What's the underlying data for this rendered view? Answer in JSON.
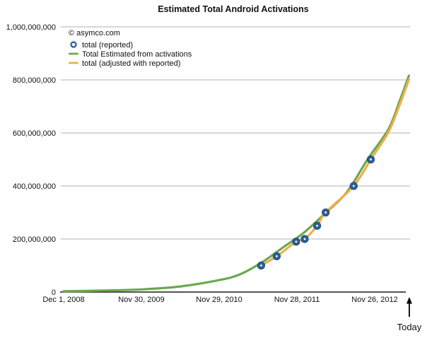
{
  "header": {
    "title": "Estimated Total Android Activations"
  },
  "watermark": "© asymco.com",
  "legend": {
    "items": [
      {
        "label": "total (reported)",
        "marker": "ring",
        "color": "#33659f"
      },
      {
        "label": "Total Estimated from activations",
        "marker": "line",
        "color": "#6aa850"
      },
      {
        "label": "total (adjusted with reported)",
        "marker": "line",
        "color": "#f0ad4d"
      }
    ]
  },
  "annotation": {
    "label": "Today",
    "t": 4.445
  },
  "colors": {
    "green_line": "#6aa850",
    "orange_line": "#f0ad4d",
    "point_fill": "#2e5f96",
    "point_rim": "#1d4a7a",
    "gridline": "#b2b2b2",
    "axis": "#1a1a1a",
    "background": "#ffffff"
  },
  "chart_data": {
    "type": "line",
    "title": "Estimated Total Android Activations",
    "x_axis": {
      "unit": "date (years since Dec 1, 2008)",
      "ticks": [
        {
          "label": "Dec 1, 2008",
          "t": 0
        },
        {
          "label": "Nov 30, 2009",
          "t": 1
        },
        {
          "label": "Nov 29, 2010",
          "t": 2
        },
        {
          "label": "Nov 28, 2011",
          "t": 3
        },
        {
          "label": "Nov 26, 2012",
          "t": 4
        }
      ]
    },
    "y_axis": {
      "range": [
        0,
        1000000000
      ],
      "grid": "horizontal",
      "ticks": [
        {
          "label": "0",
          "value": 0
        },
        {
          "label": "200,000,000",
          "value": 200000000
        },
        {
          "label": "400,000,000",
          "value": 400000000
        },
        {
          "label": "600,000,000",
          "value": 600000000
        },
        {
          "label": "800,000,000",
          "value": 800000000
        },
        {
          "label": "1,000,000,000",
          "value": 1000000000
        }
      ]
    },
    "legend_position": "top-left-inside",
    "series": [
      {
        "name": "total (reported)",
        "type": "scatter",
        "color": "#2e5f96",
        "points": [
          {
            "t": 2.54,
            "value": 100000000
          },
          {
            "t": 2.74,
            "value": 135000000
          },
          {
            "t": 2.99,
            "value": 190000000
          },
          {
            "t": 3.1,
            "value": 200000000
          },
          {
            "t": 3.26,
            "value": 250000000
          },
          {
            "t": 3.37,
            "value": 300000000
          },
          {
            "t": 3.73,
            "value": 400000000
          },
          {
            "t": 3.95,
            "value": 500000000
          }
        ]
      },
      {
        "name": "Total Estimated from activations",
        "type": "line",
        "color": "#6aa850",
        "points": [
          {
            "t": 0.0,
            "value": 3000000
          },
          {
            "t": 0.5,
            "value": 5500000
          },
          {
            "t": 1.0,
            "value": 10000000
          },
          {
            "t": 1.5,
            "value": 21000000
          },
          {
            "t": 2.0,
            "value": 45000000
          },
          {
            "t": 2.27,
            "value": 67000000
          },
          {
            "t": 2.55,
            "value": 112000000
          },
          {
            "t": 2.82,
            "value": 168000000
          },
          {
            "t": 3.09,
            "value": 224000000
          },
          {
            "t": 3.36,
            "value": 296000000
          },
          {
            "t": 3.64,
            "value": 376000000
          },
          {
            "t": 3.91,
            "value": 501000000
          },
          {
            "t": 4.18,
            "value": 616000000
          },
          {
            "t": 4.32,
            "value": 720000000
          },
          {
            "t": 4.44,
            "value": 816000000
          }
        ]
      },
      {
        "name": "total (adjusted with reported)",
        "type": "line",
        "color": "#f0ad4d",
        "points": [
          {
            "t": 2.54,
            "value": 100000000
          },
          {
            "t": 2.74,
            "value": 135000000
          },
          {
            "t": 2.99,
            "value": 190000000
          },
          {
            "t": 3.1,
            "value": 200000000
          },
          {
            "t": 3.26,
            "value": 250000000
          },
          {
            "t": 3.37,
            "value": 300000000
          },
          {
            "t": 3.73,
            "value": 400000000
          },
          {
            "t": 3.95,
            "value": 500000000
          },
          {
            "t": 4.18,
            "value": 605000000
          },
          {
            "t": 4.32,
            "value": 705000000
          },
          {
            "t": 4.44,
            "value": 802000000
          }
        ]
      }
    ],
    "annotations": [
      {
        "label": "Today",
        "t": 4.445
      }
    ]
  }
}
